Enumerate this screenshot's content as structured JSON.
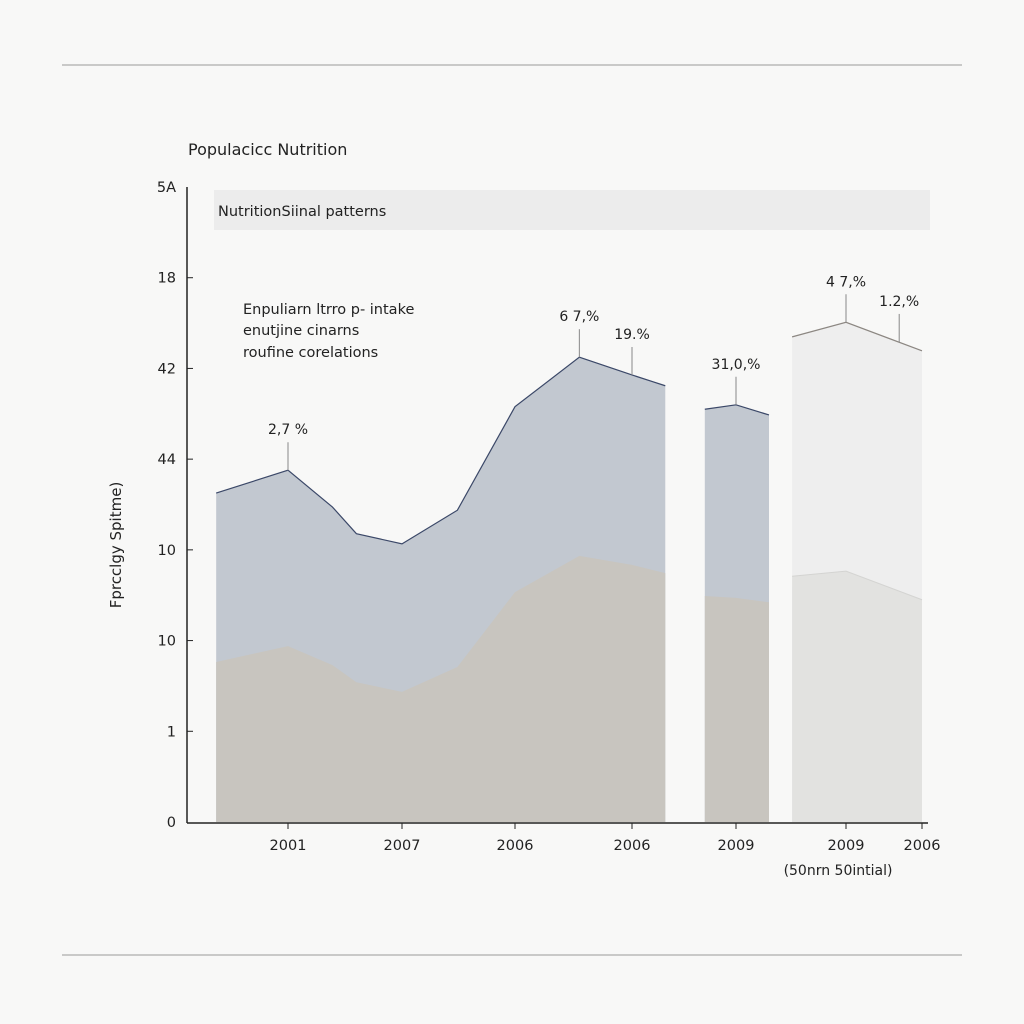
{
  "chart_data": {
    "type": "area",
    "title": "Populacicc Nutrition",
    "subtitle": "NutritionSiinal patterns",
    "annotation_lines": [
      "Enpuliarn ltrro p- intake",
      "enutjine cinarns",
      "roufine corelations"
    ],
    "ylabel": "Fprcclgy Spitme)",
    "xlabel": "(50nrn 50intial)",
    "y_tick_labels": [
      "0",
      "1",
      "10",
      "10",
      "44",
      "42",
      "18",
      "5A"
    ],
    "x_tick_labels": [
      "2001",
      "2007",
      "2006",
      "2006",
      "2009",
      "2009",
      "2006"
    ],
    "ylim": [
      0,
      100
    ],
    "grid": false,
    "legend": "none",
    "colors": {
      "upper_fill": "#c2c8d0",
      "lower_fill": "#c8c5bf",
      "upper_stroke": "#3b4868",
      "light_upper_fill": "#eeeeee",
      "light_lower_fill": "#e2e2e0",
      "light_stroke": "#8c8782",
      "banner": "#ececec"
    },
    "segments": [
      {
        "x": [
          -0.63,
          0,
          0.39,
          0.6,
          1,
          1.49,
          2,
          2.55,
          3,
          3.32
        ],
        "upper": [
          51.8,
          55.4,
          49.6,
          45.4,
          43.8,
          49.1,
          65.4,
          73.2,
          70.4,
          68.7
        ],
        "lower": [
          25.2,
          27.7,
          24.7,
          22.0,
          20.5,
          24.4,
          36.2,
          41.9,
          40.5,
          39.2
        ],
        "style": "dark"
      },
      {
        "x": [
          3.7,
          4,
          4.3
        ],
        "upper": [
          65.0,
          65.7,
          64.1
        ],
        "lower": [
          35.6,
          35.3,
          34.6
        ],
        "style": "dark"
      },
      {
        "x": [
          4.51,
          5,
          6
        ],
        "upper": [
          76.4,
          78.7,
          74.2
        ],
        "lower": [
          38.7,
          39.5,
          35.0
        ],
        "style": "light"
      }
    ],
    "data_labels": [
      {
        "text": "2,7 %",
        "x": 0,
        "y": 55.4
      },
      {
        "text": "6 7,%",
        "x": 2.55,
        "y": 73.2
      },
      {
        "text": "19.%",
        "x": 3,
        "y": 70.4
      },
      {
        "text": "31,0,%",
        "x": 4,
        "y": 65.7
      },
      {
        "text": "4 7,%",
        "x": 5,
        "y": 78.7
      },
      {
        "text": "1.2,%",
        "x": 5.7,
        "y": 75.6
      }
    ]
  }
}
